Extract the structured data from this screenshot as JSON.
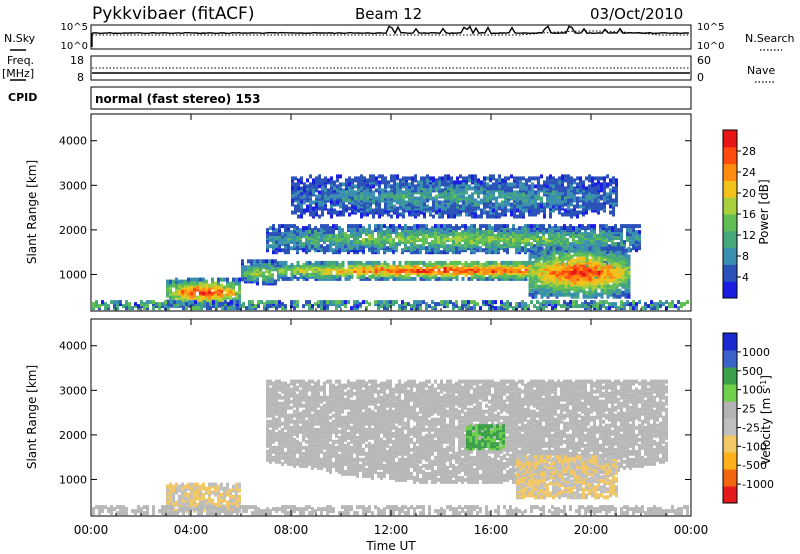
{
  "header": {
    "station": "Pykkvibaer (fitACF)",
    "beam": "Beam 12",
    "date": "03/Oct/2010"
  },
  "top_panels": {
    "nsky_label": "N.Sky",
    "nsky_ticks": [
      "10^5",
      "10^0"
    ],
    "nsearch_label": "N.Search",
    "nsearch_ticks": [
      "10^5",
      "10^0"
    ],
    "freq_label": "Freq.",
    "freq_unit": "[MHz]",
    "freq_ticks": [
      "18",
      "8"
    ],
    "nave_label": "Nave",
    "nave_ticks": [
      "60",
      "0"
    ],
    "cpid_label": "CPID",
    "cpid_text": "normal (fast stereo) 153"
  },
  "colors": {
    "power": [
      "#1a1ee0",
      "#2a52b8",
      "#3a8fb0",
      "#46a87a",
      "#5fbf55",
      "#a8cf3c",
      "#f2c21a",
      "#ff8c10",
      "#ff4a10",
      "#e81616"
    ],
    "velocity": [
      "#e51a1a",
      "#f2660f",
      "#ffb01a",
      "#f2c866",
      "#bfbfbf",
      "#b3b3b3",
      "#6fd04c",
      "#3ca04a",
      "#3a62c8",
      "#1a2ad0"
    ],
    "ground_scatter": "#b8b8b8"
  },
  "chart_data": [
    {
      "type": "heatmap",
      "name": "power",
      "ylabel": "Slant Range [km]",
      "yticks": [
        "1000",
        "2000",
        "3000",
        "4000"
      ],
      "ylim": [
        180,
        4600
      ],
      "xlim_hours": [
        0,
        24
      ],
      "colorbar_label": "Power [dB]",
      "colorbar_ticks": [
        "4",
        "8",
        "12",
        "16",
        "20",
        "24",
        "28"
      ],
      "colorbar_range": [
        0,
        30
      ],
      "features": [
        {
          "start_ut": "03:00",
          "end_ut": "06:00",
          "range_km": [
            300,
            900
          ],
          "peak_db": 28
        },
        {
          "start_ut": "06:00",
          "end_ut": "07:30",
          "range_km": [
            800,
            1300
          ],
          "peak_db": 18
        },
        {
          "start_ut": "07:30",
          "end_ut": "21:30",
          "range_km": [
            900,
            1300
          ],
          "peak_db": 28
        },
        {
          "start_ut": "07:00",
          "end_ut": "22:00",
          "range_km": [
            1500,
            2100
          ],
          "peak_db": 16
        },
        {
          "start_ut": "08:00",
          "end_ut": "21:00",
          "range_km": [
            2300,
            3200
          ],
          "peak_db": 10
        },
        {
          "start_ut": "17:30",
          "end_ut": "21:30",
          "range_km": [
            500,
            1600
          ],
          "peak_db": 28
        }
      ]
    },
    {
      "type": "heatmap",
      "name": "velocity",
      "ylabel": "Slant Range [km]",
      "yticks": [
        "1000",
        "2000",
        "3000",
        "4000"
      ],
      "ylim": [
        180,
        4600
      ],
      "xlim_hours": [
        0,
        24
      ],
      "xticks": [
        "00:00",
        "04:00",
        "08:00",
        "12:00",
        "16:00",
        "20:00",
        "00:00"
      ],
      "xlabel": "Time UT",
      "colorbar_label": "Velocity [m s",
      "colorbar_label_sup": "-1",
      "colorbar_label_end": "]",
      "colorbar_ticks": [
        "-1000",
        "-500",
        "-100",
        "-25",
        "25",
        "100",
        "500",
        "1000"
      ],
      "features": [
        {
          "start_ut": "07:00",
          "end_ut": "23:00",
          "range_km": [
            900,
            3200
          ],
          "type": "ground scatter"
        },
        {
          "start_ut": "03:00",
          "end_ut": "06:00",
          "range_km": [
            300,
            900
          ],
          "velocity": -100
        },
        {
          "start_ut": "17:00",
          "end_ut": "21:00",
          "range_km": [
            600,
            1500
          ],
          "velocity": -100
        },
        {
          "start_ut": "15:00",
          "end_ut": "16:30",
          "range_km": [
            1700,
            2200
          ],
          "velocity": 100
        }
      ]
    }
  ]
}
